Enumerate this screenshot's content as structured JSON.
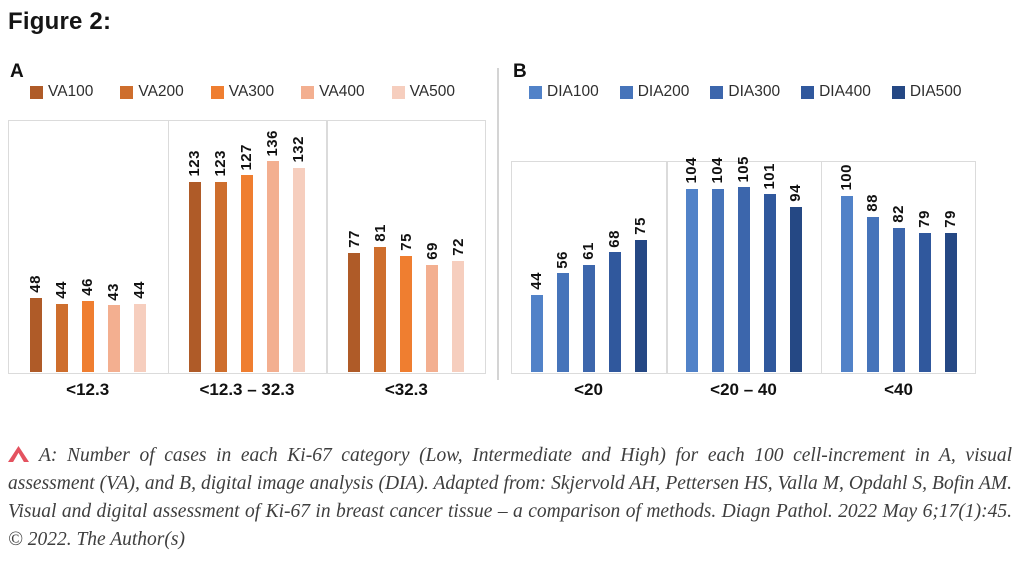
{
  "figure_label": "Figure 2:",
  "style": {
    "plot_border_color": "#DBDBDB",
    "panel_divider_color": "#D4D4D4",
    "caption_marker_color": "#E4525F",
    "chart_text_color": "#111111",
    "caption_text_color": "#3E3E3E"
  },
  "chart_data": [
    {
      "type": "bar",
      "panel_label": "A",
      "title": "",
      "xlabel": "",
      "ylabel": "",
      "categories": [
        "<12.3",
        "<12.3 – 32.3",
        "<32.3"
      ],
      "series": [
        {
          "name": "VA100",
          "color": "#AF5B28",
          "values": [
            48,
            123,
            77
          ]
        },
        {
          "name": "VA200",
          "color": "#CE6E2D",
          "values": [
            44,
            123,
            81
          ]
        },
        {
          "name": "VA300",
          "color": "#EF7E30",
          "values": [
            46,
            127,
            75
          ]
        },
        {
          "name": "VA400",
          "color": "#F3AF90",
          "values": [
            43,
            136,
            69
          ]
        },
        {
          "name": "VA500",
          "color": "#F6CEBE",
          "values": [
            44,
            132,
            72
          ]
        }
      ],
      "ylim": [
        0,
        164
      ],
      "legend_position": "top",
      "grid": false,
      "bar_value_labels": "rotated-90-bold"
    },
    {
      "type": "bar",
      "panel_label": "B",
      "title": "",
      "xlabel": "",
      "ylabel": "",
      "categories": [
        "<20",
        "<20 – 40",
        "<40"
      ],
      "series": [
        {
          "name": "DIA100",
          "color": "#5182C8",
          "values": [
            44,
            104,
            100
          ]
        },
        {
          "name": "DIA200",
          "color": "#4674BA",
          "values": [
            56,
            104,
            88
          ]
        },
        {
          "name": "DIA300",
          "color": "#3C66AC",
          "values": [
            61,
            105,
            82
          ]
        },
        {
          "name": "DIA400",
          "color": "#30589D",
          "values": [
            68,
            101,
            79
          ]
        },
        {
          "name": "DIA500",
          "color": "#254884",
          "values": [
            75,
            94,
            79
          ]
        }
      ],
      "ylim": [
        0,
        121
      ],
      "legend_position": "top",
      "grid": false,
      "bar_value_labels": "rotated-90-bold"
    }
  ],
  "caption": {
    "marker_icon": "caret-up",
    "text": "A: Number of cases in each Ki-67 category (Low, Intermediate and High) for each 100 cell-increment in A, visual assessment (VA), and B, digital image analysis (DIA). Adapted from: Skjervold AH, Pettersen HS, Valla M, Opdahl S, Bofin AM. Visual and digital assessment of Ki-67 in breast cancer tissue – a comparison of methods. Diagn Pathol. 2022 May 6;17(1):45. © 2022. The Author(s)"
  }
}
